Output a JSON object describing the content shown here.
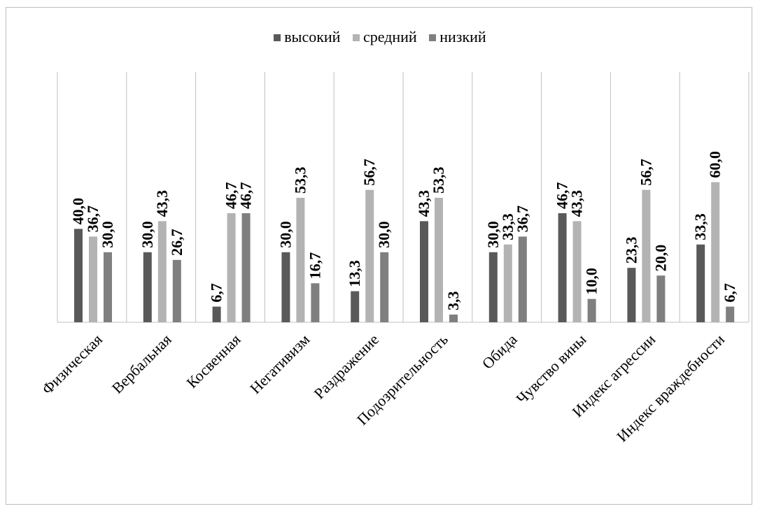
{
  "chart_data": {
    "type": "bar",
    "title": "",
    "xlabel": "",
    "ylabel": "",
    "ylim": [
      0,
      70
    ],
    "grid": "vertical-category-separators",
    "legend": "top",
    "categories": [
      "Физическая",
      "Вербальная",
      "Косвенная",
      "Негативизм",
      "Раздражение",
      "Подозрительность",
      "Обида",
      "Чувство вины",
      "Индекс агрессии",
      "Индекс враждебности"
    ],
    "series": [
      {
        "name": "высокий",
        "color": "#595959",
        "values": [
          40.0,
          30.0,
          6.7,
          30.0,
          13.3,
          43.3,
          30.0,
          46.7,
          23.3,
          33.3
        ]
      },
      {
        "name": "средний",
        "color": "#b3b3b3",
        "values": [
          36.7,
          43.3,
          46.7,
          53.3,
          56.7,
          53.3,
          33.3,
          43.3,
          56.7,
          60.0
        ]
      },
      {
        "name": "низкий",
        "color": "#7f7f7f",
        "values": [
          30.0,
          26.7,
          46.7,
          16.7,
          30.0,
          3.3,
          36.7,
          10.0,
          20.0,
          6.7
        ]
      }
    ],
    "data_labels": [
      [
        "40,0",
        "36,7",
        "30,0"
      ],
      [
        "30,0",
        "43,3",
        "26,7"
      ],
      [
        "6,7",
        "46,7",
        "46,7"
      ],
      [
        "30,0",
        "53,3",
        "16,7"
      ],
      [
        "13,3",
        "56,7",
        "30,0"
      ],
      [
        "43,3",
        "53,3",
        "3,3"
      ],
      [
        "30,0",
        "33,3",
        "36,7"
      ],
      [
        "46,7",
        "43,3",
        "10,0"
      ],
      [
        "23,3",
        "56,7",
        "20,0"
      ],
      [
        "33,3",
        "60,0",
        "6,7"
      ]
    ]
  }
}
